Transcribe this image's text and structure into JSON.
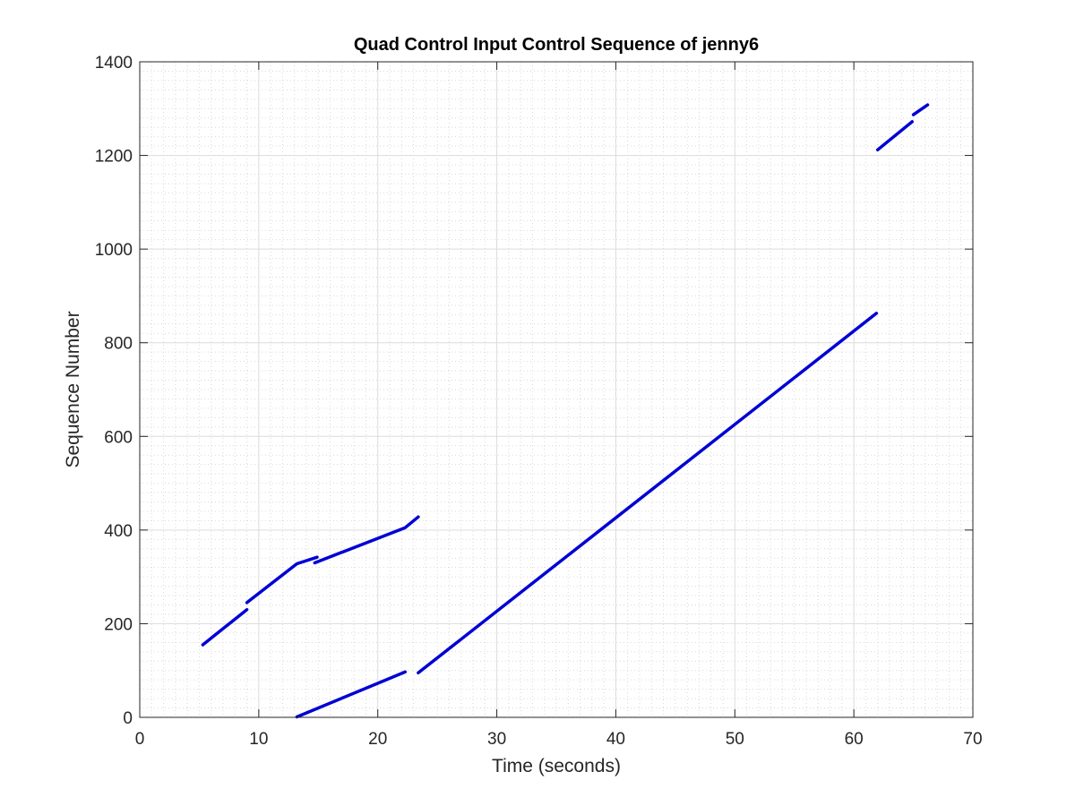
{
  "chart_data": {
    "type": "line",
    "title": "Quad Control Input Control Sequence of jenny6",
    "xlabel": "Time (seconds)",
    "ylabel": "Sequence Number",
    "xlim": [
      0,
      70
    ],
    "ylim": [
      0,
      1400
    ],
    "xticks": [
      0,
      10,
      20,
      30,
      40,
      50,
      60,
      70
    ],
    "yticks": [
      0,
      200,
      400,
      600,
      800,
      1000,
      1200,
      1400
    ],
    "xtick_labels": [
      "0",
      "10",
      "20",
      "30",
      "40",
      "50",
      "60",
      "70"
    ],
    "ytick_labels": [
      "0",
      "200",
      "400",
      "600",
      "800",
      "1000",
      "1200",
      "1400"
    ],
    "grid": "major and minor",
    "line_color": "#0000d4",
    "series": [
      {
        "name": "segment-1",
        "points": [
          [
            5.3,
            155
          ],
          [
            9.0,
            230
          ]
        ]
      },
      {
        "name": "segment-2",
        "points": [
          [
            9.0,
            245
          ],
          [
            13.2,
            328
          ],
          [
            14.9,
            342
          ]
        ]
      },
      {
        "name": "segment-3",
        "points": [
          [
            14.7,
            330
          ],
          [
            22.3,
            405
          ],
          [
            23.4,
            428
          ]
        ]
      },
      {
        "name": "segment-4",
        "points": [
          [
            13.2,
            1
          ],
          [
            22.3,
            97
          ]
        ]
      },
      {
        "name": "segment-5",
        "points": [
          [
            23.4,
            95
          ],
          [
            61.9,
            863
          ]
        ]
      },
      {
        "name": "segment-6",
        "points": [
          [
            62.0,
            1212
          ],
          [
            64.9,
            1272
          ]
        ]
      },
      {
        "name": "segment-7",
        "points": [
          [
            65.0,
            1287
          ],
          [
            66.2,
            1308
          ]
        ]
      }
    ]
  }
}
